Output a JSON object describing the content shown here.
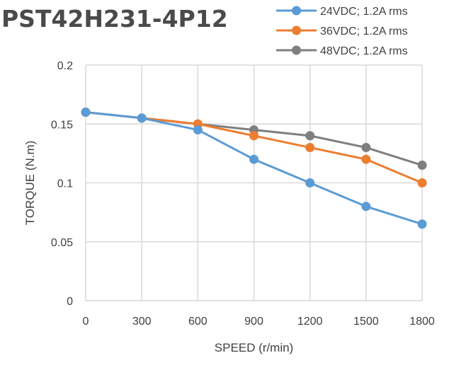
{
  "chart_data": {
    "type": "line",
    "title": "PST42H231-4P12",
    "xlabel": "SPEED (r/min)",
    "ylabel": "TORQUE (N.m)",
    "categories": [
      "0",
      "300",
      "600",
      "900",
      "1200",
      "1500",
      "1800"
    ],
    "x": [
      0,
      300,
      600,
      900,
      1200,
      1500,
      1800
    ],
    "ylim": [
      0,
      0.2
    ],
    "yticks": [
      "0",
      "0.05",
      "0.1",
      "0.15",
      "0.2"
    ],
    "yticks_values": [
      0,
      0.05,
      0.1,
      0.15,
      0.2
    ],
    "grid": true,
    "legend_position": "top-right",
    "series": [
      {
        "name": "24VDC; 1.2A rms",
        "color": "#5b9bd5",
        "values": [
          0.16,
          0.155,
          0.145,
          0.12,
          0.1,
          0.08,
          0.065
        ]
      },
      {
        "name": "36VDC; 1.2A rms",
        "color": "#ed7d31",
        "values": [
          0.16,
          0.155,
          0.15,
          0.14,
          0.13,
          0.12,
          0.1
        ]
      },
      {
        "name": "48VDC; 1.2A rms",
        "color": "#7f7f7f",
        "values": [
          0.16,
          0.155,
          0.15,
          0.145,
          0.14,
          0.13,
          0.115
        ]
      }
    ]
  }
}
